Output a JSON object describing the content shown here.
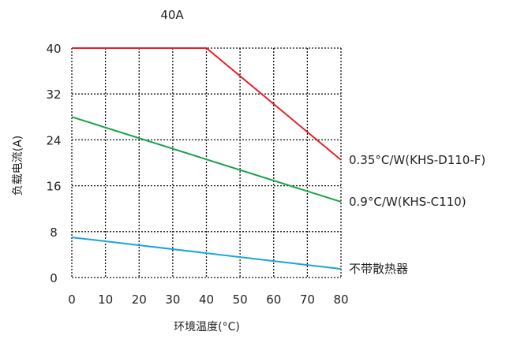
{
  "chart_data": {
    "type": "line",
    "title": "40A",
    "xlabel": "环境温度(°C)",
    "ylabel": "负载电流(A)",
    "xlim": [
      0,
      80
    ],
    "ylim": [
      0,
      40
    ],
    "x_ticks": [
      0,
      10,
      20,
      30,
      40,
      50,
      60,
      70,
      80
    ],
    "y_ticks": [
      0,
      8,
      16,
      24,
      32,
      40
    ],
    "grid": true,
    "legend_placement": "right of line ends",
    "series": [
      {
        "name": "0.35°C/W(KHS-D110-F)",
        "color": "#e8202a",
        "points": [
          [
            0,
            40
          ],
          [
            40,
            40
          ],
          [
            80,
            20.5
          ]
        ]
      },
      {
        "name": "0.9°C/W(KHS-C110)",
        "color": "#19a24a",
        "points": [
          [
            0,
            28
          ],
          [
            80,
            13.2
          ]
        ]
      },
      {
        "name": "不带散热器",
        "color": "#1aa3dc",
        "points": [
          [
            0,
            7
          ],
          [
            80,
            1.5
          ]
        ]
      }
    ]
  }
}
